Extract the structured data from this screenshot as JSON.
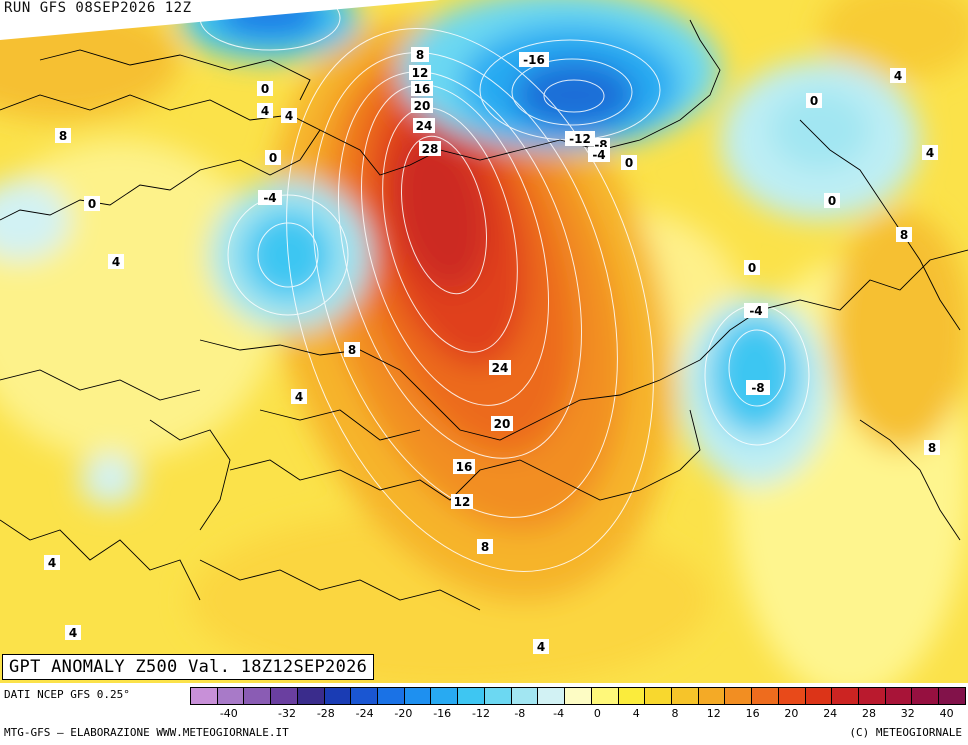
{
  "header": {
    "run_label": "RUN GFS 08SEP2026 12Z"
  },
  "title": "GPT ANOMALY Z500 Val. 18Z12SEP2026",
  "footer": {
    "source": "DATI NCEP GFS 0.25°",
    "credit": "MTG-GFS – ELABORAZIONE WWW.METEOGIORNALE.IT",
    "copyright": "(C) METEOGIORNALE"
  },
  "colorbar": {
    "tick_labels": [
      "-40",
      "-32",
      "-28",
      "-24",
      "-20",
      "-16",
      "-12",
      "-8",
      "-4",
      "0",
      "4",
      "8",
      "12",
      "16",
      "20",
      "24",
      "28",
      "32",
      "40"
    ],
    "colors": [
      "#c890d8",
      "#a87ac8",
      "#8a5cb4",
      "#6a3fa0",
      "#3a2c8c",
      "#1a3cb4",
      "#1a56d2",
      "#1a72e6",
      "#1e90f0",
      "#28aaf2",
      "#3ec6f2",
      "#6cd8f2",
      "#a2e6f2",
      "#d2f2f4",
      "#fdfcc4",
      "#fff87a",
      "#fbec3c",
      "#f8d82e",
      "#f6c42a",
      "#f4aa26",
      "#f28e22",
      "#ee6c1e",
      "#e84a1a",
      "#dc3418",
      "#cc2422",
      "#ba1a2e",
      "#a81438",
      "#961040",
      "#82124a"
    ]
  },
  "contour_labels": [
    {
      "text": "8"
    },
    {
      "text": "12"
    },
    {
      "text": "16"
    },
    {
      "text": "20"
    },
    {
      "text": "24"
    },
    {
      "text": "28"
    },
    {
      "text": "-16"
    },
    {
      "text": "-12"
    },
    {
      "text": "-8"
    },
    {
      "text": "-4"
    },
    {
      "text": "0"
    },
    {
      "text": "4"
    },
    {
      "text": "0"
    },
    {
      "text": "4"
    },
    {
      "text": "8"
    },
    {
      "text": "0"
    },
    {
      "text": "4"
    },
    {
      "text": "4"
    },
    {
      "text": "0"
    },
    {
      "text": "-4"
    },
    {
      "text": "8"
    },
    {
      "text": "0"
    },
    {
      "text": "4"
    },
    {
      "text": "0"
    },
    {
      "text": "4"
    },
    {
      "text": "8"
    },
    {
      "text": "0"
    },
    {
      "text": "-4"
    },
    {
      "text": "-8"
    },
    {
      "text": "8"
    },
    {
      "text": "24"
    },
    {
      "text": "20"
    },
    {
      "text": "16"
    },
    {
      "text": "12"
    },
    {
      "text": "8"
    },
    {
      "text": "4"
    },
    {
      "text": "4"
    },
    {
      "text": "4"
    }
  ]
}
